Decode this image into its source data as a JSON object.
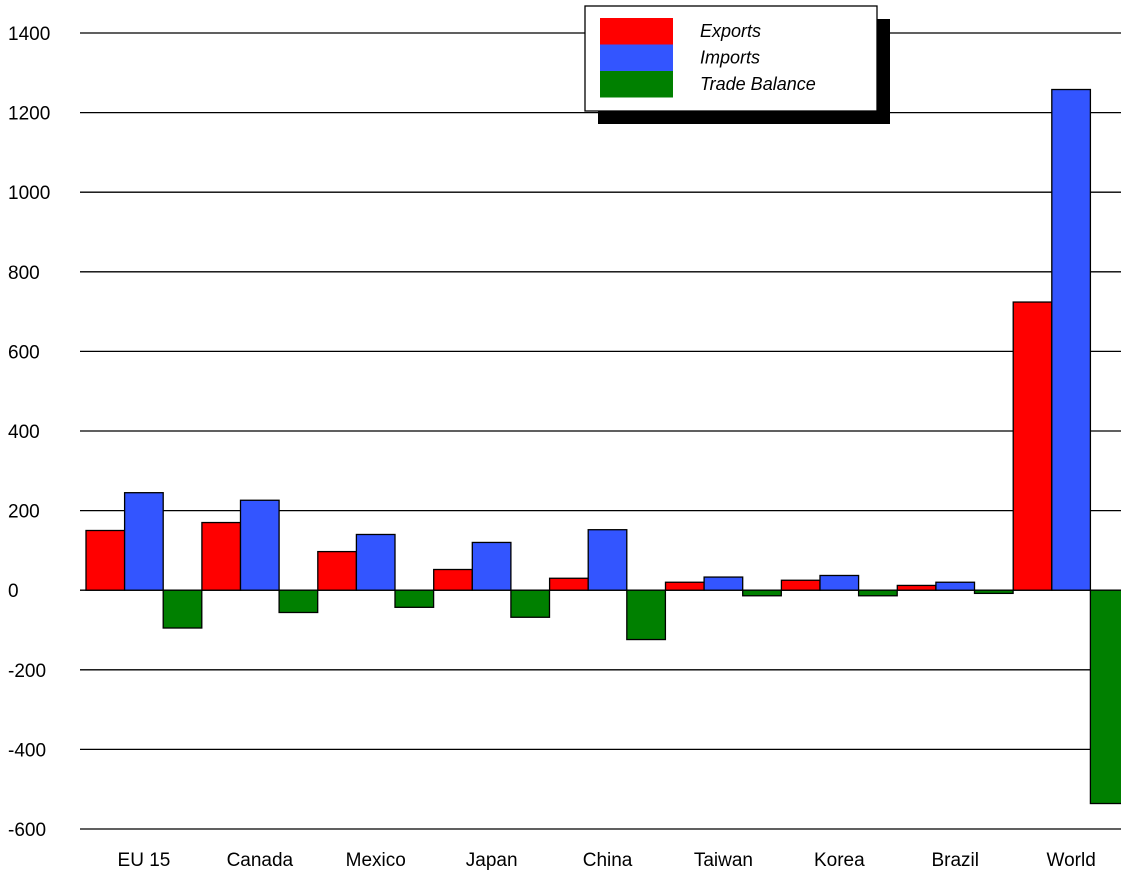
{
  "chart_data": {
    "type": "bar",
    "categories": [
      "EU 15",
      "Canada",
      "Mexico",
      "Japan",
      "China",
      "Taiwan",
      "Korea",
      "Brazil",
      "World"
    ],
    "series": [
      {
        "name": "Exports",
        "color": "#ff0000",
        "values": [
          150,
          170,
          97,
          52,
          30,
          20,
          25,
          12,
          724
        ]
      },
      {
        "name": "Imports",
        "color": "#3355ff",
        "values": [
          245,
          226,
          140,
          120,
          152,
          33,
          37,
          20,
          1258
        ]
      },
      {
        "name": "Trade Balance",
        "color": "#008000",
        "values": [
          -95,
          -56,
          -43,
          -68,
          -124,
          -14,
          -14,
          -8,
          -536
        ]
      }
    ],
    "yticks": [
      1400,
      1200,
      1000,
      800,
      600,
      400,
      200,
      0,
      -200,
      -400,
      -600
    ],
    "ytick_labels": [
      "1400",
      "1200",
      "1000",
      "800",
      "600",
      "400",
      "200",
      "0",
      "-200",
      "-400",
      "-600"
    ],
    "ylim": [
      -600,
      1400
    ],
    "grid": true,
    "legend_position": "top-center",
    "title": "",
    "xlabel": "",
    "ylabel": ""
  }
}
